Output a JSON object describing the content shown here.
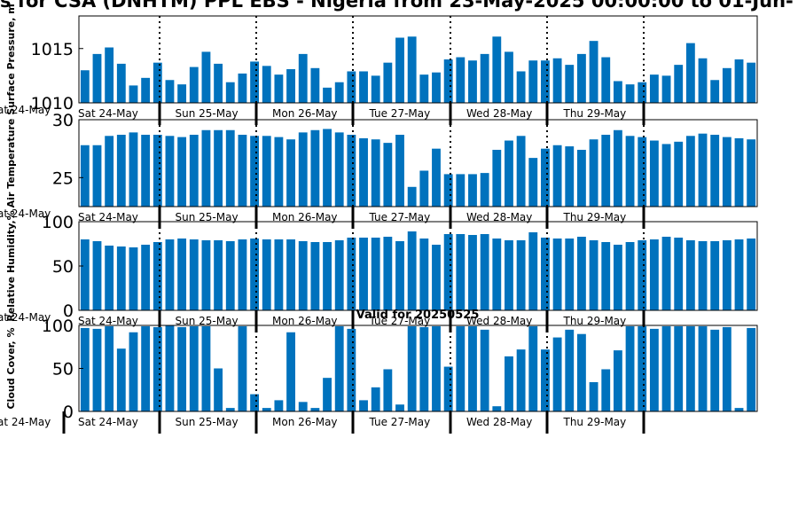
{
  "page": {
    "title": "s for CSA (DNHTM) PPL EBS  - Nigeria from 23-May-2025 00:00:00 to 01-Jun-"
  },
  "colors": {
    "bar": "#0072bd",
    "axis": "#000000",
    "background": "#ffffff"
  },
  "day_labels": [
    "Sat 24-May",
    "Sun 25-May",
    "Mon 26-May",
    "Tue 27-May",
    "Wed 28-May",
    "Thu 29-May"
  ],
  "edge_tick_label": "at 24-May",
  "chart_data": [
    {
      "type": "bar",
      "ylabel": "Surface Pressure, m",
      "ylim": [
        1010,
        1018
      ],
      "yticks": [
        1010,
        1015
      ],
      "values": [
        1013.0,
        1014.5,
        1015.1,
        1013.6,
        1011.6,
        1012.3,
        1013.7,
        1012.1,
        1011.7,
        1013.3,
        1014.7,
        1013.6,
        1011.9,
        1012.7,
        1013.8,
        1013.4,
        1012.6,
        1013.1,
        1014.5,
        1013.2,
        1011.4,
        1011.9,
        1012.9,
        1012.9,
        1012.5,
        1013.7,
        1016.0,
        1016.1,
        1012.6,
        1012.8,
        1014.0,
        1014.2,
        1013.9,
        1014.5,
        1016.1,
        1014.7,
        1012.9,
        1013.9,
        1013.9,
        1014.1,
        1013.5,
        1014.5,
        1015.7,
        1014.2,
        1012.0,
        1011.7,
        1011.9,
        1012.6,
        1012.5,
        1013.5,
        1015.5,
        1014.1,
        1012.1,
        1013.2,
        1014.0,
        1013.7
      ]
    },
    {
      "type": "bar",
      "ylabel": "Air Temperature",
      "ylim": [
        22.5,
        30
      ],
      "yticks": [
        25,
        30
      ],
      "values": [
        27.8,
        27.8,
        28.6,
        28.7,
        28.9,
        28.7,
        28.7,
        28.6,
        28.5,
        28.7,
        29.1,
        29.1,
        29.1,
        28.7,
        28.6,
        28.6,
        28.5,
        28.3,
        28.9,
        29.1,
        29.2,
        28.9,
        28.7,
        28.4,
        28.3,
        28.0,
        28.7,
        24.2,
        25.6,
        27.5,
        25.3,
        25.3,
        25.3,
        25.4,
        27.4,
        28.2,
        28.6,
        26.7,
        27.5,
        27.8,
        27.7,
        27.4,
        28.3,
        28.7,
        29.1,
        28.6,
        28.5,
        28.2,
        27.9,
        28.1,
        28.6,
        28.8,
        28.7,
        28.5,
        28.4,
        28.3
      ]
    },
    {
      "type": "bar",
      "ylabel": "Relative Humidity,%",
      "ylim": [
        0,
        100
      ],
      "yticks": [
        0,
        50,
        100
      ],
      "values": [
        80,
        78,
        73,
        72,
        71,
        74,
        77,
        80,
        81,
        80,
        79,
        79,
        78,
        80,
        81,
        80,
        80,
        80,
        78,
        77,
        77,
        79,
        82,
        82,
        82,
        83,
        78,
        89,
        81,
        74,
        86,
        86,
        85,
        86,
        81,
        79,
        79,
        88,
        82,
        81,
        81,
        83,
        79,
        77,
        74,
        77,
        79,
        80,
        83,
        82,
        79,
        78,
        78,
        79,
        80,
        81
      ]
    },
    {
      "type": "bar",
      "title": "Valid for 20250525",
      "ylabel": "Cloud Cover, %",
      "ylim": [
        0,
        100
      ],
      "yticks": [
        0,
        50,
        100
      ],
      "values": [
        97,
        96,
        99,
        73,
        92,
        99,
        98,
        100,
        98,
        99,
        99,
        50,
        4,
        99,
        20,
        4,
        13,
        92,
        11,
        4,
        39,
        99,
        96,
        13,
        28,
        49,
        8,
        99,
        98,
        99,
        52,
        99,
        99,
        95,
        6,
        64,
        72,
        99,
        72,
        86,
        95,
        90,
        34,
        49,
        71,
        99,
        99,
        96,
        99,
        99,
        99,
        99,
        95,
        98,
        4,
        97
      ]
    }
  ]
}
